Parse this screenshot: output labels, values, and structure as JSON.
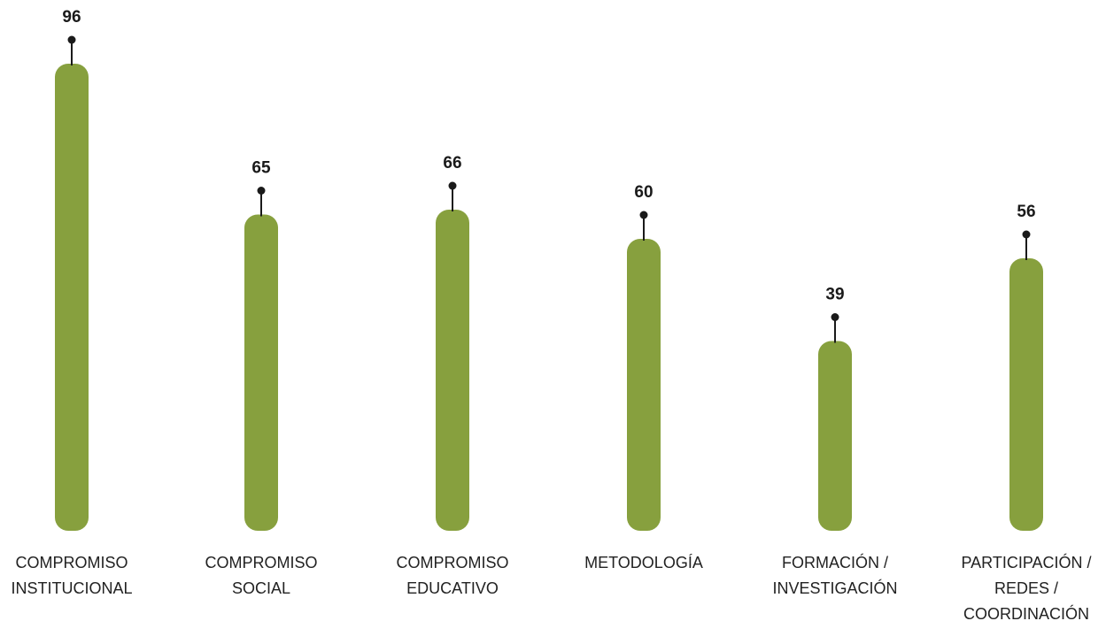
{
  "chart_data": {
    "type": "bar",
    "categories": [
      [
        "COMPROMISO",
        "INSTITUCIONAL"
      ],
      [
        "COMPROMISO",
        "SOCIAL"
      ],
      [
        "COMPROMISO",
        "EDUCATIVO"
      ],
      [
        "METODOLOGÍA"
      ],
      [
        "FORMACIÓN /",
        "INVESTIGACIÓN"
      ],
      [
        "PARTICIPACIÓN /",
        "REDES /",
        "COORDINACIÓN"
      ]
    ],
    "values": [
      96,
      65,
      66,
      60,
      39,
      56
    ],
    "value_labels": [
      "96",
      "65",
      "66",
      "60",
      "39",
      "56"
    ],
    "ylim": [
      0,
      100
    ],
    "grid": false,
    "legend": "none",
    "colors": {
      "bar": "#87a03e",
      "marker": "#1a1a1a",
      "text": "#222222"
    }
  }
}
